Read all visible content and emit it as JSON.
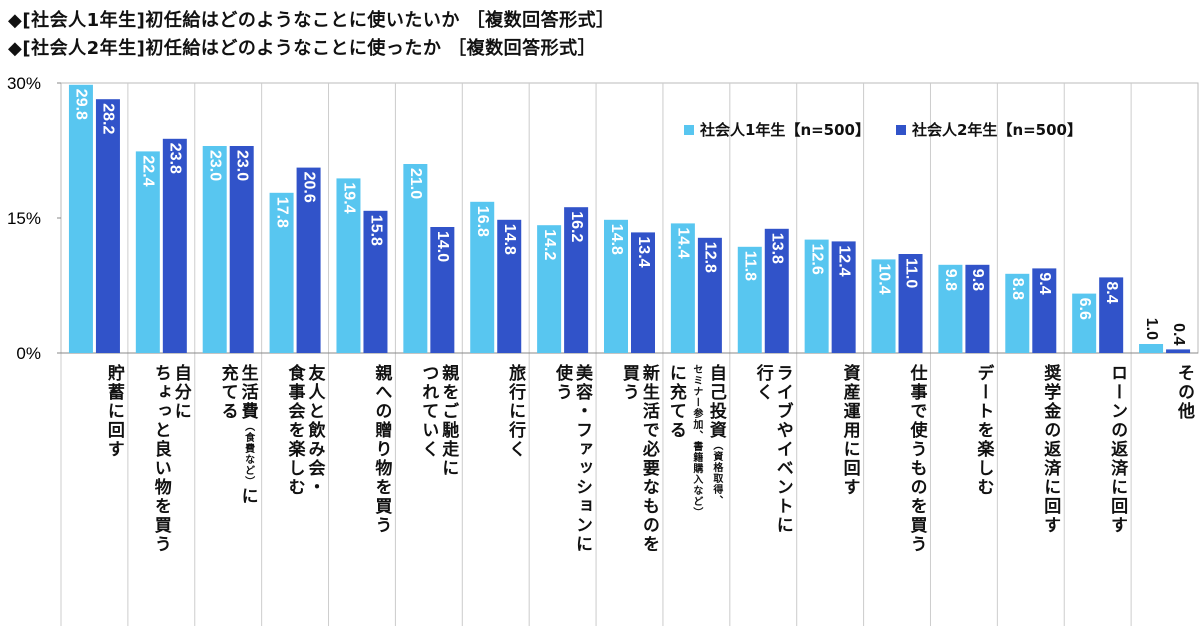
{
  "titles": [
    "◆[社会人1年生]初任給はどのようなことに使いたいか ［複数回答形式］",
    "◆[社会人2年生]初任給はどのようなことに使ったか ［複数回答形式］"
  ],
  "chart_data": {
    "type": "bar",
    "ylim": [
      0,
      30
    ],
    "yticks": [
      "0%",
      "15%",
      "30%"
    ],
    "ytick_values": [
      0,
      15,
      30
    ],
    "grid": "vertical separators",
    "legend_position": "top-right",
    "categories": [
      [
        "貯蓄に回す"
      ],
      [
        "自分に",
        "ちょっと良い物を買う"
      ],
      [
        "生活費（食費など）に",
        "充てる"
      ],
      [
        "友人と飲み会・",
        "食事会を楽しむ"
      ],
      [
        "親への贈り物を買う"
      ],
      [
        "親をご馳走に",
        "つれていく"
      ],
      [
        "旅行に行く"
      ],
      [
        "美容・ファッションに",
        "使う"
      ],
      [
        "新生活で必要なものを",
        "買う"
      ],
      [
        "自己投資（資格取得、",
        "セミナー参加、書籍購入など）",
        "に充てる"
      ],
      [
        "ライブやイベントに",
        "行く"
      ],
      [
        "資産運用に回す"
      ],
      [
        "仕事で使うものを買う"
      ],
      [
        "デートを楽しむ"
      ],
      [
        "奨学金の返済に回す"
      ],
      [
        "ローンの返済に回す"
      ],
      [
        "その他"
      ]
    ],
    "series": [
      {
        "name": "社会人1年生【n=500】",
        "color": "#58c6f0",
        "values": [
          29.8,
          22.4,
          23.0,
          17.8,
          19.4,
          21.0,
          16.8,
          14.2,
          14.8,
          14.4,
          11.8,
          12.6,
          10.4,
          9.8,
          8.8,
          6.6,
          1.0
        ]
      },
      {
        "name": "社会人2年生【n=500】",
        "color": "#3153c9",
        "values": [
          28.2,
          23.8,
          23.0,
          20.6,
          15.8,
          14.0,
          14.8,
          16.2,
          13.4,
          12.8,
          13.8,
          12.4,
          11.0,
          9.8,
          9.4,
          8.4,
          0.4
        ]
      }
    ]
  }
}
